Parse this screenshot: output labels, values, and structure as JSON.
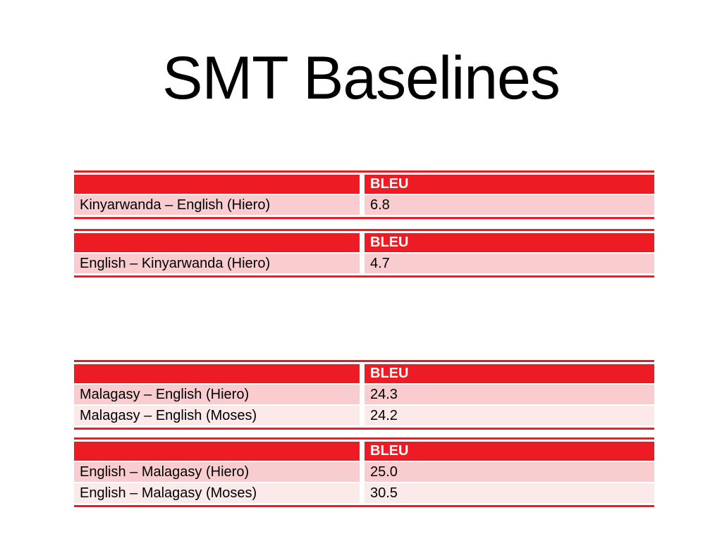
{
  "slide": {
    "title": "SMT Baselines"
  },
  "colors": {
    "header_red": "#ED1C24",
    "border_red": "#ED1C24",
    "row_pink": "#F9CDD0",
    "row_pink_alt": "#FCE9EA",
    "header_text": "#FFFFFF",
    "body_text": "#000000",
    "background": "#FFFFFF"
  },
  "tables": [
    {
      "name": "kinyarwanda-to-english",
      "header_label": "BLEU",
      "rows": [
        {
          "label": "Kinyarwanda – English (Hiero)",
          "value": "6.8"
        }
      ]
    },
    {
      "name": "english-to-kinyarwanda",
      "header_label": "BLEU",
      "rows": [
        {
          "label": "English – Kinyarwanda (Hiero)",
          "value": "4.7"
        }
      ]
    },
    {
      "name": "malagasy-to-english",
      "header_label": "BLEU",
      "rows": [
        {
          "label": "Malagasy – English (Hiero)",
          "value": "24.3"
        },
        {
          "label": "Malagasy – English (Moses)",
          "value": "24.2"
        }
      ]
    },
    {
      "name": "english-to-malagasy",
      "header_label": "BLEU",
      "rows": [
        {
          "label": "English – Malagasy (Hiero)",
          "value": "25.0"
        },
        {
          "label": "English – Malagasy (Moses)",
          "value": "30.5"
        }
      ]
    }
  ]
}
